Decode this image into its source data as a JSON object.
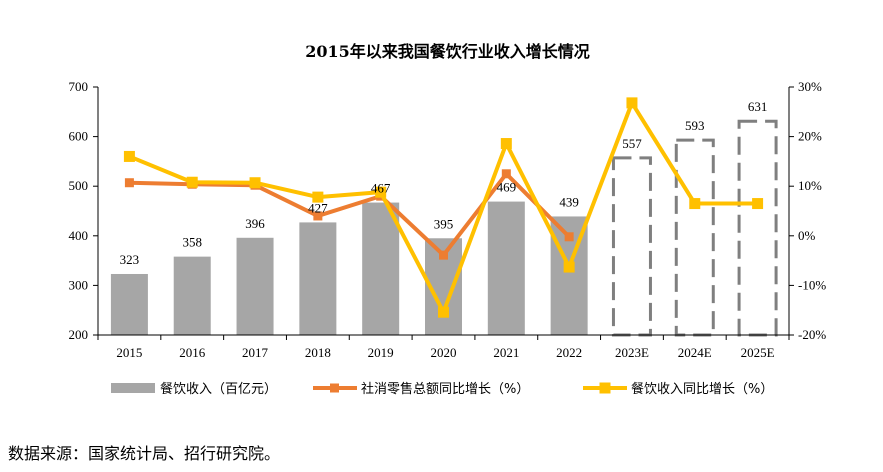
{
  "chart_data": {
    "type": "bar",
    "title": "2015年以来我国餐饮行业收入增长情况",
    "categories": [
      "2015",
      "2016",
      "2017",
      "2018",
      "2019",
      "2020",
      "2021",
      "2022",
      "2023E",
      "2024E",
      "2025E"
    ],
    "y_left": {
      "ylim": [
        200,
        700
      ],
      "ticks": [
        200,
        300,
        400,
        500,
        600,
        700
      ]
    },
    "y_right": {
      "ylim": [
        -20,
        30
      ],
      "ticks": [
        "-20%",
        "-10%",
        "0%",
        "10%",
        "20%",
        "30%"
      ]
    },
    "series": [
      {
        "name": "餐饮收入（百亿元）",
        "type": "bar",
        "axis": "left",
        "color": "#a6a6a6",
        "values": [
          323,
          358,
          396,
          427,
          467,
          395,
          469,
          439,
          557,
          593,
          631
        ],
        "estimated_style": "dashed-outline",
        "estimated_from_index": 8
      },
      {
        "name": "社消零售总额同比增长（%）",
        "type": "line",
        "axis": "right",
        "color": "#ed7d31",
        "values": [
          10.7,
          10.4,
          10.2,
          4.0,
          8.0,
          -3.9,
          12.5,
          -0.2,
          null,
          null,
          null
        ]
      },
      {
        "name": "餐饮收入同比增长（%）",
        "type": "line",
        "axis": "right",
        "color": "#ffc000",
        "values": [
          16.0,
          10.8,
          10.7,
          7.8,
          8.8,
          -15.4,
          18.6,
          -6.3,
          26.8,
          6.5,
          6.5
        ]
      }
    ],
    "legend_position": "bottom",
    "grid": false
  },
  "source_text": "数据来源：国家统计局、招行研究院。"
}
